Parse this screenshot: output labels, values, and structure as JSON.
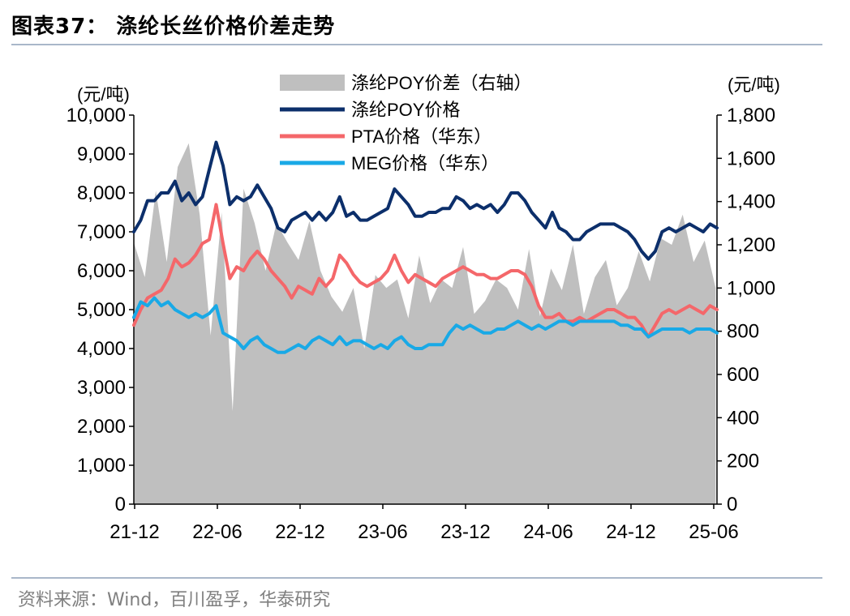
{
  "header": {
    "title": "图表37： 涤纶长丝价格价差走势"
  },
  "footer": {
    "source": "资料来源：Wind，百川盈孚，华泰研究"
  },
  "chart_data": {
    "type": "line",
    "x_tick_labels": [
      "21-12",
      "22-06",
      "22-12",
      "23-06",
      "23-12",
      "24-06",
      "24-12",
      "25-06"
    ],
    "y_left_unit": "(元/吨)",
    "y_right_unit": "(元/吨)",
    "y_left_range": [
      0,
      10000
    ],
    "y_right_range": [
      0,
      1800
    ],
    "y_left_ticks": [
      "0",
      "1,000",
      "2,000",
      "3,000",
      "4,000",
      "5,000",
      "6,000",
      "7,000",
      "8,000",
      "9,000",
      "10,000"
    ],
    "y_right_ticks": [
      "0",
      "200",
      "400",
      "600",
      "800",
      "1,000",
      "1,200",
      "1,400",
      "1,600",
      "1,800"
    ],
    "legend": [
      {
        "label": "涤纶POY价差（右轴）",
        "style": "area",
        "color": "#bfbfbf"
      },
      {
        "label": "涤纶POY价格",
        "style": "line",
        "color": "#0c2f6b"
      },
      {
        "label": "PTA价格（华东）",
        "style": "line",
        "color": "#f4676a"
      },
      {
        "label": "MEG价格（华东）",
        "style": "line",
        "color": "#19a9e6"
      }
    ],
    "series": [
      {
        "name": "涤纶POY价差（右轴）",
        "axis": "right",
        "type": "area",
        "color": "#bfbfbf",
        "x": [
          0,
          0.8,
          1.6,
          2.4,
          3.2,
          4.0,
          4.8,
          5.6,
          6.4,
          7.2,
          8.0,
          8.8,
          9.6,
          10.4,
          11.2,
          12.0,
          12.8,
          13.6,
          14.4,
          15.2,
          16.0,
          16.8,
          17.6,
          18.4,
          19.2,
          20.0,
          20.8,
          21.6,
          22.4,
          23.2,
          24.0,
          24.8,
          25.6,
          26.4,
          27.2,
          28.0,
          28.8,
          29.6,
          30.4,
          31.2,
          32.0,
          32.8,
          33.6,
          34.4,
          35.2,
          36.0,
          36.8,
          37.6,
          38.4,
          39.2,
          40.0,
          40.8,
          41.6,
          42.4
        ],
        "values": [
          1210,
          1050,
          1450,
          1120,
          1560,
          1670,
          1340,
          780,
          1350,
          430,
          1460,
          1300,
          1080,
          1300,
          1210,
          1130,
          1310,
          1080,
          960,
          890,
          1000,
          720,
          1060,
          1000,
          1040,
          860,
          1150,
          930,
          1040,
          1000,
          1190,
          880,
          940,
          1040,
          1000,
          900,
          1180,
          870,
          1090,
          990,
          1200,
          880,
          1050,
          1130,
          920,
          1000,
          1170,
          1030,
          1230,
          1200,
          1340,
          1120,
          1220,
          1000
        ]
      },
      {
        "name": "涤纶POY价格",
        "axis": "left",
        "type": "line",
        "color": "#0c2f6b",
        "x": [
          0,
          0.5,
          1,
          1.5,
          2,
          2.5,
          3,
          3.5,
          4,
          4.5,
          5,
          5.5,
          6,
          6.5,
          7,
          7.5,
          8,
          8.5,
          9,
          9.5,
          10,
          10.5,
          11,
          11.5,
          12,
          12.5,
          13,
          13.5,
          14,
          14.5,
          15,
          15.5,
          16,
          16.5,
          17,
          17.5,
          18,
          18.5,
          19,
          19.5,
          20,
          20.5,
          21,
          21.5,
          22,
          22.5,
          23,
          23.5,
          24,
          24.5,
          25,
          25.5,
          26,
          26.5,
          27,
          27.5,
          28,
          28.5,
          29,
          29.5,
          30,
          30.5,
          31,
          31.5,
          32,
          32.5,
          33,
          33.5,
          34,
          34.5,
          35,
          35.5,
          36,
          36.5,
          37,
          37.5,
          38,
          38.5,
          39,
          39.5,
          40,
          40.5,
          41,
          41.5,
          42,
          42.5
        ],
        "values": [
          7000,
          7300,
          7800,
          7800,
          8000,
          8000,
          8300,
          7800,
          8000,
          7700,
          7900,
          8600,
          9300,
          8700,
          7700,
          7900,
          7800,
          7900,
          8200,
          7900,
          7600,
          7100,
          7000,
          7300,
          7400,
          7500,
          7300,
          7500,
          7300,
          7500,
          7900,
          7400,
          7500,
          7300,
          7300,
          7400,
          7500,
          7600,
          8100,
          7900,
          7700,
          7400,
          7400,
          7500,
          7500,
          7600,
          7600,
          7900,
          7800,
          7600,
          7700,
          7600,
          7700,
          7500,
          7700,
          8000,
          8000,
          7800,
          7500,
          7300,
          7100,
          7500,
          7100,
          7000,
          6800,
          6800,
          7000,
          7100,
          7200,
          7200,
          7200,
          7100,
          7000,
          6800,
          6500,
          6300,
          6500,
          7000,
          7100,
          7000,
          7100,
          7200,
          7100,
          7000,
          7200,
          7100
        ]
      },
      {
        "name": "PTA价格（华东）",
        "axis": "left",
        "type": "line",
        "color": "#f4676a",
        "x": [
          0,
          0.5,
          1,
          1.5,
          2,
          2.5,
          3,
          3.5,
          4,
          4.5,
          5,
          5.5,
          6,
          6.5,
          7,
          7.5,
          8,
          8.5,
          9,
          9.5,
          10,
          10.5,
          11,
          11.5,
          12,
          12.5,
          13,
          13.5,
          14,
          14.5,
          15,
          15.5,
          16,
          16.5,
          17,
          17.5,
          18,
          18.5,
          19,
          19.5,
          20,
          20.5,
          21,
          21.5,
          22,
          22.5,
          23,
          23.5,
          24,
          24.5,
          25,
          25.5,
          26,
          26.5,
          27,
          27.5,
          28,
          28.5,
          29,
          29.5,
          30,
          30.5,
          31,
          31.5,
          32,
          32.5,
          33,
          33.5,
          34,
          34.5,
          35,
          35.5,
          36,
          36.5,
          37,
          37.5,
          38,
          38.5,
          39,
          39.5,
          40,
          40.5,
          41,
          41.5,
          42,
          42.5
        ],
        "values": [
          4600,
          5000,
          5300,
          5400,
          5500,
          5800,
          6300,
          6100,
          6200,
          6400,
          6700,
          6800,
          7700,
          6700,
          5800,
          6100,
          6000,
          6300,
          6500,
          6300,
          6000,
          5800,
          5600,
          5300,
          5600,
          5500,
          5400,
          5800,
          5600,
          5800,
          6400,
          6200,
          5900,
          5700,
          5600,
          5700,
          5800,
          6000,
          6400,
          6000,
          5700,
          5900,
          5800,
          5700,
          5600,
          5800,
          5900,
          6000,
          6100,
          6000,
          5900,
          5900,
          5800,
          5800,
          5900,
          6000,
          6000,
          5900,
          5600,
          5100,
          4800,
          4800,
          4900,
          4700,
          4700,
          4800,
          4700,
          4800,
          4900,
          5000,
          5000,
          4900,
          4800,
          4800,
          4600,
          4300,
          4600,
          4900,
          5000,
          4900,
          5000,
          5100,
          5000,
          4900,
          5100,
          5000
        ]
      },
      {
        "name": "MEG价格（华东）",
        "axis": "left",
        "type": "line",
        "color": "#19a9e6",
        "x": [
          0,
          0.5,
          1,
          1.5,
          2,
          2.5,
          3,
          3.5,
          4,
          4.5,
          5,
          5.5,
          6,
          6.5,
          7,
          7.5,
          8,
          8.5,
          9,
          9.5,
          10,
          10.5,
          11,
          11.5,
          12,
          12.5,
          13,
          13.5,
          14,
          14.5,
          15,
          15.5,
          16,
          16.5,
          17,
          17.5,
          18,
          18.5,
          19,
          19.5,
          20,
          20.5,
          21,
          21.5,
          22,
          22.5,
          23,
          23.5,
          24,
          24.5,
          25,
          25.5,
          26,
          26.5,
          27,
          27.5,
          28,
          28.5,
          29,
          29.5,
          30,
          30.5,
          31,
          31.5,
          32,
          32.5,
          33,
          33.5,
          34,
          34.5,
          35,
          35.5,
          36,
          36.5,
          37,
          37.5,
          38,
          38.5,
          39,
          39.5,
          40,
          40.5,
          41,
          41.5,
          42,
          42.5
        ],
        "values": [
          4800,
          5200,
          5100,
          5300,
          5100,
          5200,
          5000,
          4900,
          4800,
          4900,
          4800,
          4900,
          5100,
          4400,
          4300,
          4200,
          4000,
          4200,
          4300,
          4100,
          4000,
          3900,
          3900,
          4000,
          4100,
          4000,
          4200,
          4300,
          4200,
          4100,
          4300,
          4100,
          4200,
          4200,
          4100,
          4000,
          4100,
          4000,
          4200,
          4300,
          4100,
          4000,
          4000,
          4100,
          4100,
          4100,
          4400,
          4600,
          4500,
          4600,
          4500,
          4400,
          4400,
          4500,
          4500,
          4600,
          4700,
          4600,
          4500,
          4600,
          4500,
          4600,
          4700,
          4700,
          4600,
          4700,
          4700,
          4700,
          4700,
          4700,
          4700,
          4600,
          4600,
          4500,
          4500,
          4300,
          4400,
          4500,
          4500,
          4500,
          4500,
          4400,
          4500,
          4500,
          4500,
          4400
        ]
      }
    ]
  }
}
